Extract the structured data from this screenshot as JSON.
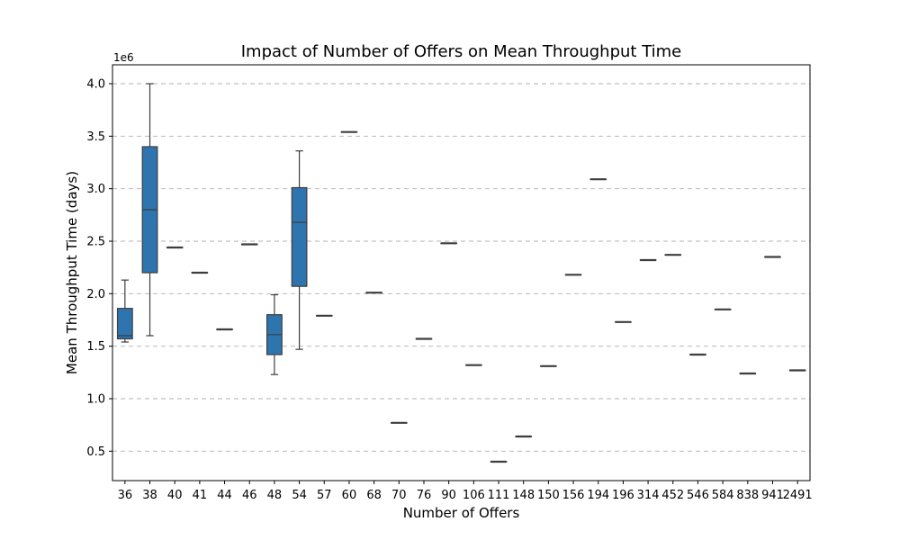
{
  "chart_data": {
    "type": "box",
    "title": "Impact of Number of Offers on Mean Throughput Time",
    "xlabel": "Number of Offers",
    "ylabel": "Mean Throughput Time (days)",
    "y_offset_label": "1e6",
    "y_multiplier": 1000000,
    "ylim": [
      0.22,
      4.18
    ],
    "yticks": [
      0.5,
      1.0,
      1.5,
      2.0,
      2.5,
      3.0,
      3.5,
      4.0
    ],
    "ytick_labels": [
      "0.5",
      "1.0",
      "1.5",
      "2.0",
      "2.5",
      "3.0",
      "3.5",
      "4.0"
    ],
    "grid": "y-dashed",
    "box_color": "#2e75b0",
    "categories": [
      "36",
      "38",
      "40",
      "41",
      "44",
      "46",
      "48",
      "54",
      "57",
      "60",
      "68",
      "70",
      "76",
      "90",
      "106",
      "111",
      "148",
      "150",
      "156",
      "194",
      "196",
      "314",
      "452",
      "546",
      "584",
      "838",
      "941",
      "2491"
    ],
    "boxes": [
      {
        "category": "36",
        "min": 1.54,
        "q1": 1.57,
        "median": 1.6,
        "q3": 1.86,
        "max": 2.13
      },
      {
        "category": "38",
        "min": 1.6,
        "q1": 2.2,
        "median": 2.8,
        "q3": 3.4,
        "max": 4.0
      },
      {
        "category": "40",
        "min": 2.44,
        "q1": 2.44,
        "median": 2.44,
        "q3": 2.44,
        "max": 2.44
      },
      {
        "category": "41",
        "min": 2.2,
        "q1": 2.2,
        "median": 2.2,
        "q3": 2.2,
        "max": 2.2
      },
      {
        "category": "44",
        "min": 1.66,
        "q1": 1.66,
        "median": 1.66,
        "q3": 1.66,
        "max": 1.66
      },
      {
        "category": "46",
        "min": 2.47,
        "q1": 2.47,
        "median": 2.47,
        "q3": 2.47,
        "max": 2.47
      },
      {
        "category": "48",
        "min": 1.23,
        "q1": 1.42,
        "median": 1.61,
        "q3": 1.8,
        "max": 1.99
      },
      {
        "category": "54",
        "min": 1.47,
        "q1": 2.07,
        "median": 2.68,
        "q3": 3.01,
        "max": 3.36
      },
      {
        "category": "57",
        "min": 1.79,
        "q1": 1.79,
        "median": 1.79,
        "q3": 1.79,
        "max": 1.79
      },
      {
        "category": "60",
        "min": 3.54,
        "q1": 3.54,
        "median": 3.54,
        "q3": 3.54,
        "max": 3.54
      },
      {
        "category": "68",
        "min": 2.01,
        "q1": 2.01,
        "median": 2.01,
        "q3": 2.01,
        "max": 2.01
      },
      {
        "category": "70",
        "min": 0.77,
        "q1": 0.77,
        "median": 0.77,
        "q3": 0.77,
        "max": 0.77
      },
      {
        "category": "76",
        "min": 1.57,
        "q1": 1.57,
        "median": 1.57,
        "q3": 1.57,
        "max": 1.57
      },
      {
        "category": "90",
        "min": 2.48,
        "q1": 2.48,
        "median": 2.48,
        "q3": 2.48,
        "max": 2.48
      },
      {
        "category": "106",
        "min": 1.32,
        "q1": 1.32,
        "median": 1.32,
        "q3": 1.32,
        "max": 1.32
      },
      {
        "category": "111",
        "min": 0.4,
        "q1": 0.4,
        "median": 0.4,
        "q3": 0.4,
        "max": 0.4
      },
      {
        "category": "148",
        "min": 0.64,
        "q1": 0.64,
        "median": 0.64,
        "q3": 0.64,
        "max": 0.64
      },
      {
        "category": "150",
        "min": 1.31,
        "q1": 1.31,
        "median": 1.31,
        "q3": 1.31,
        "max": 1.31
      },
      {
        "category": "156",
        "min": 2.18,
        "q1": 2.18,
        "median": 2.18,
        "q3": 2.18,
        "max": 2.18
      },
      {
        "category": "194",
        "min": 3.09,
        "q1": 3.09,
        "median": 3.09,
        "q3": 3.09,
        "max": 3.09
      },
      {
        "category": "196",
        "min": 1.73,
        "q1": 1.73,
        "median": 1.73,
        "q3": 1.73,
        "max": 1.73
      },
      {
        "category": "314",
        "min": 2.32,
        "q1": 2.32,
        "median": 2.32,
        "q3": 2.32,
        "max": 2.32
      },
      {
        "category": "452",
        "min": 2.37,
        "q1": 2.37,
        "median": 2.37,
        "q3": 2.37,
        "max": 2.37
      },
      {
        "category": "546",
        "min": 1.42,
        "q1": 1.42,
        "median": 1.42,
        "q3": 1.42,
        "max": 1.42
      },
      {
        "category": "584",
        "min": 1.85,
        "q1": 1.85,
        "median": 1.85,
        "q3": 1.85,
        "max": 1.85
      },
      {
        "category": "838",
        "min": 1.24,
        "q1": 1.24,
        "median": 1.24,
        "q3": 1.24,
        "max": 1.24
      },
      {
        "category": "941",
        "min": 2.35,
        "q1": 2.35,
        "median": 2.35,
        "q3": 2.35,
        "max": 2.35
      },
      {
        "category": "2491",
        "min": 1.27,
        "q1": 1.27,
        "median": 1.27,
        "q3": 1.27,
        "max": 1.27
      }
    ]
  }
}
